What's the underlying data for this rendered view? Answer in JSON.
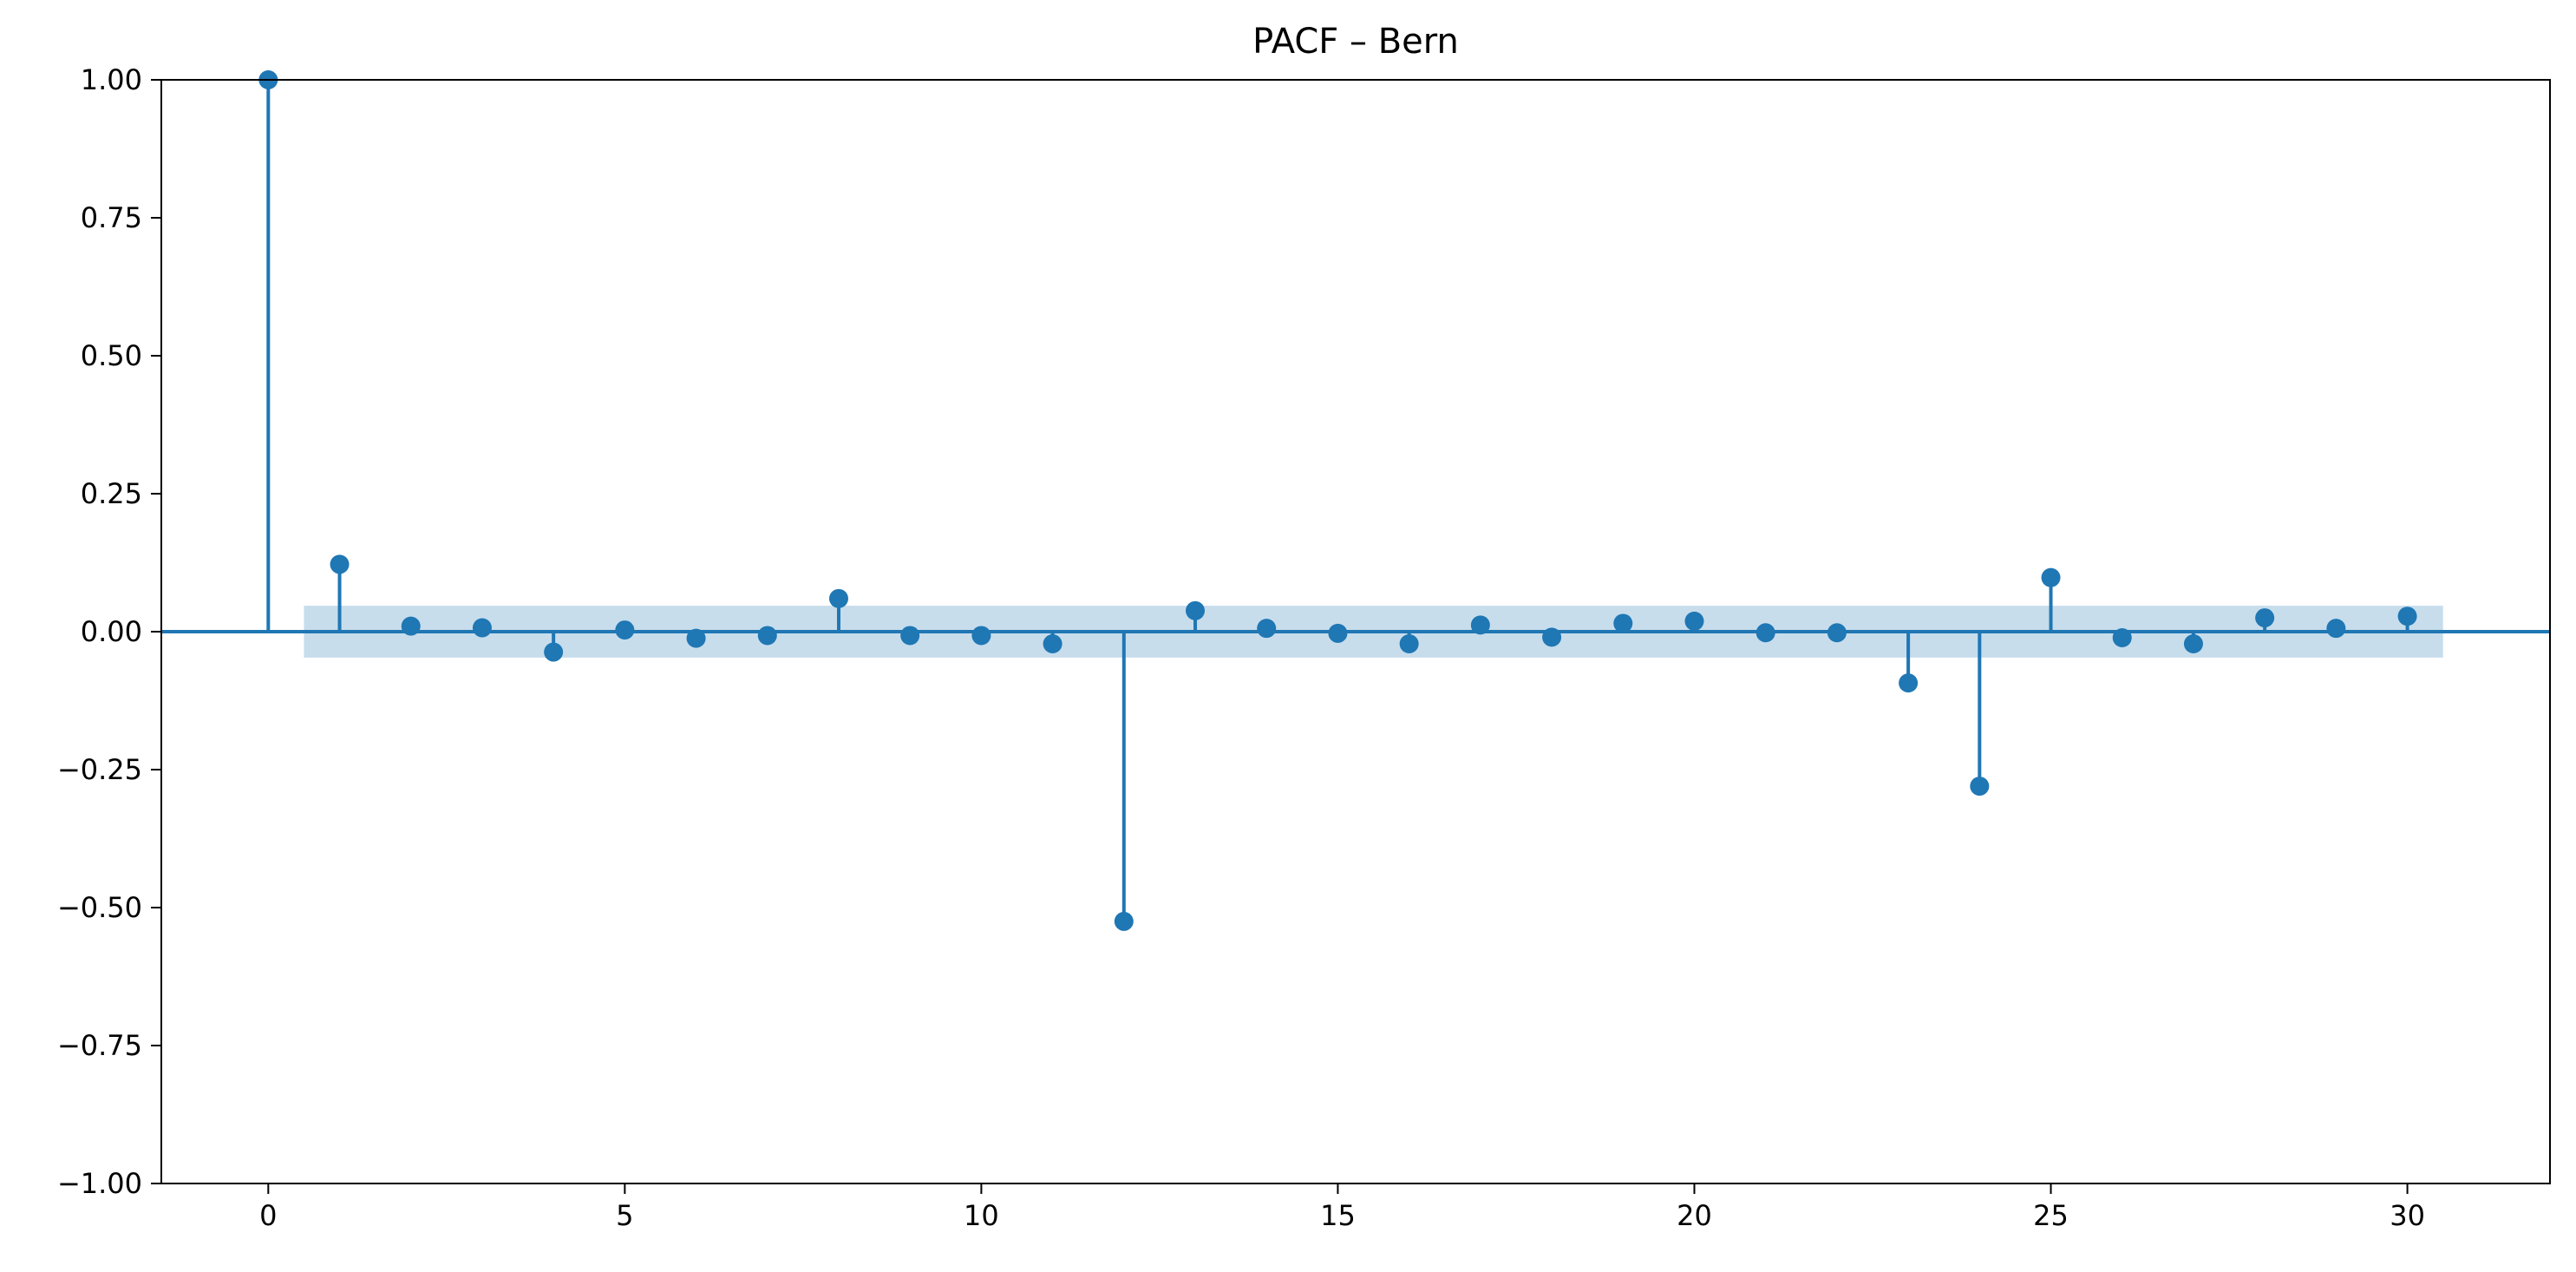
{
  "chart_data": {
    "type": "stem",
    "title": "PACF – Bern",
    "xlabel": "",
    "ylabel": "",
    "xlim": [
      -1.5,
      32
    ],
    "ylim": [
      -1.0,
      1.0
    ],
    "xticks": [
      0,
      5,
      10,
      15,
      20,
      25,
      30
    ],
    "xtick_labels": [
      "0",
      "5",
      "10",
      "15",
      "20",
      "25",
      "30"
    ],
    "yticks": [
      -1.0,
      -0.75,
      -0.5,
      -0.25,
      0.0,
      0.25,
      0.5,
      0.75,
      1.0
    ],
    "ytick_labels": [
      "−1.00",
      "−0.75",
      "−0.50",
      "−0.25",
      "0.00",
      "0.25",
      "0.50",
      "0.75",
      "1.00"
    ],
    "grid": false,
    "confidence_band": {
      "x_range": [
        0.5,
        30.5
      ],
      "lower": -0.047,
      "upper": 0.047
    },
    "lags": [
      0,
      1,
      2,
      3,
      4,
      5,
      6,
      7,
      8,
      9,
      10,
      11,
      12,
      13,
      14,
      15,
      16,
      17,
      18,
      19,
      20,
      21,
      22,
      23,
      24,
      25,
      26,
      27,
      28,
      29,
      30
    ],
    "values": [
      1.0,
      0.122,
      0.01,
      0.007,
      -0.037,
      0.003,
      -0.012,
      -0.007,
      0.06,
      -0.007,
      -0.007,
      -0.022,
      -0.525,
      0.038,
      0.006,
      -0.003,
      -0.022,
      0.012,
      -0.01,
      0.015,
      0.019,
      -0.002,
      -0.002,
      -0.093,
      -0.28,
      0.098,
      -0.011,
      -0.022,
      0.025,
      0.006,
      0.028
    ],
    "colors": {
      "stem": "#1f77b4",
      "band": "#1f77b4",
      "axes": "#000000"
    }
  }
}
